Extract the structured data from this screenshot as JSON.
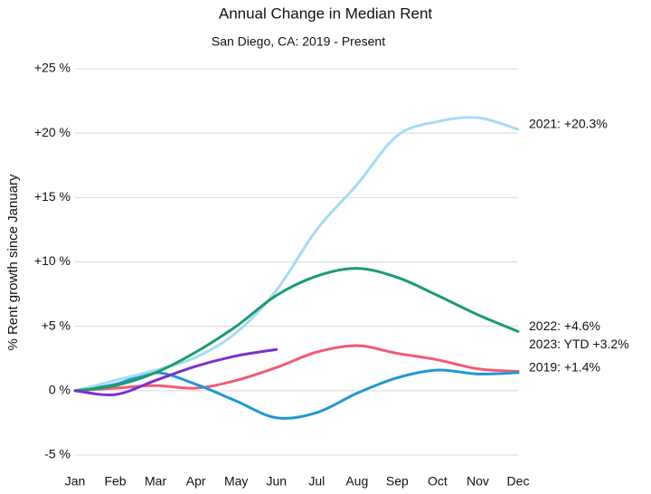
{
  "chart_data": {
    "type": "line",
    "title": "Annual Change in Median Rent",
    "subtitle": "San Diego, CA: 2019 - Present",
    "y_label": "% Rent growth since January",
    "categories": [
      "Jan",
      "Feb",
      "Mar",
      "Apr",
      "May",
      "Jun",
      "Jul",
      "Aug",
      "Sep",
      "Oct",
      "Nov",
      "Dec"
    ],
    "ylim": [
      -5,
      25
    ],
    "yticks": [
      {
        "value": 25,
        "label": "+25 %"
      },
      {
        "value": 20,
        "label": "+20 %"
      },
      {
        "value": 15,
        "label": "+15 %"
      },
      {
        "value": 10,
        "label": "+10 %"
      },
      {
        "value": 5,
        "label": "+5 %"
      },
      {
        "value": 0,
        "label": "0 %"
      },
      {
        "value": -5,
        "label": "-5 %"
      }
    ],
    "grid": true,
    "series": [
      {
        "color": "#f25a75",
        "values": [
          0,
          0.2,
          0.4,
          0.2,
          0.8,
          1.8,
          3.0,
          3.5,
          2.9,
          2.4,
          1.7,
          1.5
        ]
      },
      {
        "label": "2019: +1.4%",
        "color": "#1f98d3",
        "values": [
          0,
          0.5,
          1.4,
          0.5,
          -0.8,
          -2.1,
          -1.7,
          -0.2,
          1.0,
          1.6,
          1.3,
          1.4
        ]
      },
      {
        "label": "2021: +20.3%",
        "color": "#a5dcf3",
        "values": [
          0,
          0.8,
          1.6,
          2.6,
          4.5,
          7.8,
          12.5,
          16.0,
          19.8,
          20.9,
          21.2,
          20.3
        ]
      },
      {
        "label": "2022: +4.6%",
        "color": "#1b9b6f",
        "values": [
          0,
          0.4,
          1.4,
          3.0,
          5.0,
          7.4,
          8.9,
          9.5,
          8.8,
          7.4,
          5.9,
          4.6
        ]
      },
      {
        "label": "2023: YTD +3.2%",
        "color": "#7a30d1",
        "values": [
          0,
          -0.3,
          0.8,
          1.9,
          2.7,
          3.2,
          null,
          null,
          null,
          null,
          null,
          null
        ]
      }
    ]
  }
}
